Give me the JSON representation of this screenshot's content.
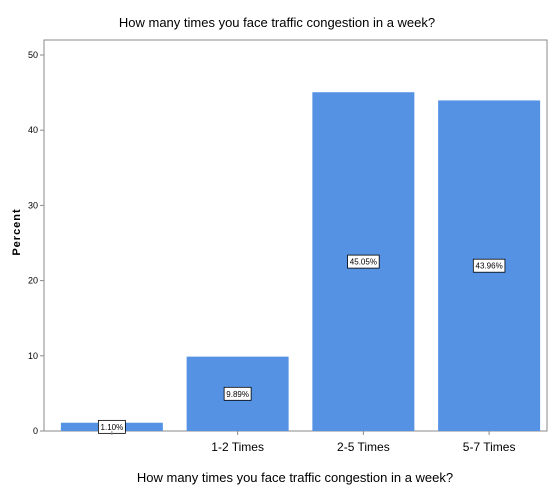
{
  "chart_data": {
    "type": "bar",
    "title": "How many times you face traffic congestion in a week?",
    "xlabel": "How many times you face traffic congestion in a week?",
    "ylabel": "Percent",
    "categories": [
      "",
      "1-2 Times",
      "2-5 Times",
      "5-7 Times"
    ],
    "values": [
      1.1,
      9.89,
      45.05,
      43.96
    ],
    "data_labels": [
      "1.10%",
      "9.89%",
      "45.05%",
      "43.96%"
    ],
    "ylim": [
      0,
      50
    ],
    "yticks": [
      "0",
      "10",
      "20",
      "30",
      "40",
      "50"
    ],
    "grid": false,
    "legend": "none",
    "bar_color": "#5592e4",
    "frame_color": "#8a8a8a"
  }
}
